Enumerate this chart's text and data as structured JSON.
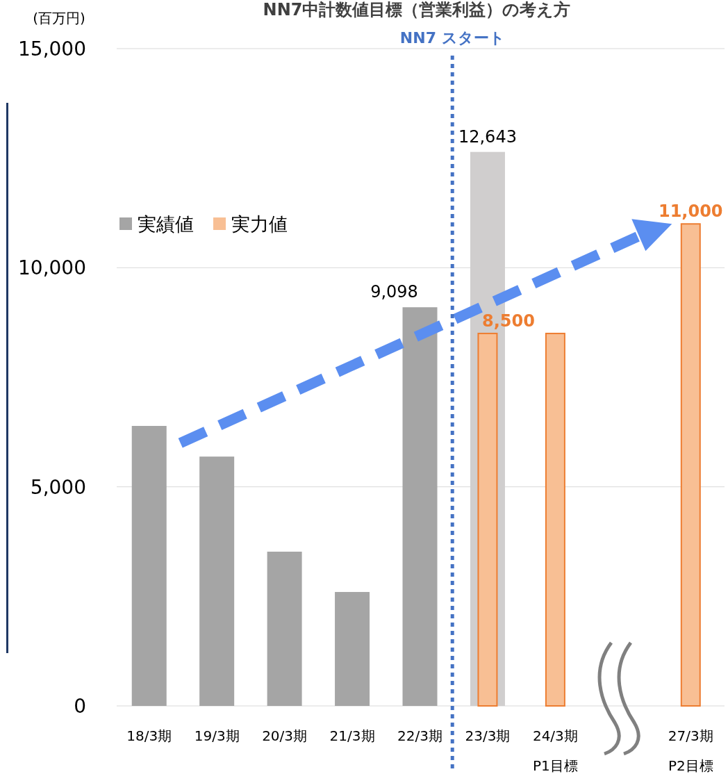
{
  "chart_data": {
    "type": "bar",
    "title": "NN7中計数値目標（営業利益）の考え方",
    "ylabel": "(百万円)",
    "categories": [
      "18/3期",
      "19/3期",
      "20/3期",
      "21/3期",
      "22/3期",
      "23/3期",
      "24/3期\nP1目標",
      null,
      "27/3期\nP2目標"
    ],
    "series": [
      {
        "name": "実績値",
        "color": "#a5a5a5",
        "colors": [
          "#a5a5a5",
          "#a5a5a5",
          "#a5a5a5",
          "#a5a5a5",
          "#a5a5a5",
          "#d0cece",
          null,
          null,
          null
        ],
        "values": [
          6390,
          5690,
          3520,
          2600,
          9098,
          12643,
          null,
          null,
          null
        ],
        "value_labels": [
          null,
          null,
          null,
          null,
          "9,098",
          "12,643",
          null,
          null,
          null
        ]
      },
      {
        "name": "実力値",
        "color": "#f8bf94",
        "values": [
          null,
          null,
          null,
          null,
          null,
          8500,
          8500,
          null,
          11000
        ],
        "value_labels": [
          null,
          null,
          null,
          null,
          null,
          "8,500",
          null,
          null,
          "11,000"
        ]
      }
    ],
    "ylim": [
      0,
      15000
    ],
    "yticks": [
      {
        "value": 0,
        "label": "0"
      },
      {
        "value": 5000,
        "label": "5,000"
      },
      {
        "value": 10000,
        "label": "10,000"
      },
      {
        "value": 15000,
        "label": "15,000"
      }
    ],
    "grid": "y",
    "legend": "left",
    "ref_lines": [
      {
        "axis": "x",
        "value": "23/3期",
        "label": "NN7 スタート",
        "color": "#4472c4",
        "line_style": "dotted"
      }
    ]
  }
}
